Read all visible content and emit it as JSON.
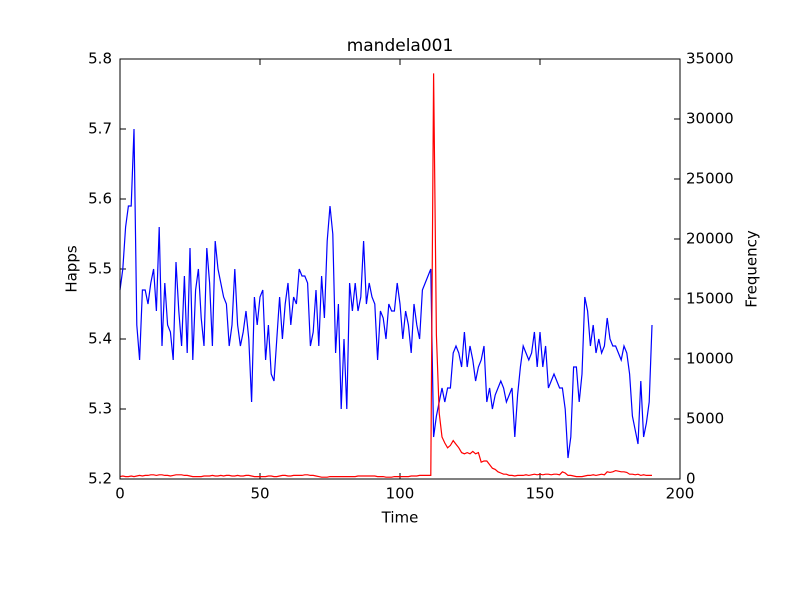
{
  "chart_data": {
    "type": "line",
    "title": "mandela001",
    "xlabel": "Time",
    "ylabel": "Happs",
    "y2label": "Frequency",
    "xlim": [
      0,
      200
    ],
    "xticks": [
      0,
      50,
      100,
      150,
      200
    ],
    "ylim": [
      5.2,
      5.8
    ],
    "yticks": [
      5.2,
      5.3,
      5.4,
      5.5,
      5.6,
      5.7,
      5.8
    ],
    "y2lim": [
      0,
      35000
    ],
    "y2ticks": [
      0,
      5000,
      10000,
      15000,
      20000,
      25000,
      30000,
      35000
    ],
    "x": [
      0,
      1,
      2,
      3,
      4,
      5,
      6,
      7,
      8,
      9,
      10,
      11,
      12,
      13,
      14,
      15,
      16,
      17,
      18,
      19,
      20,
      21,
      22,
      23,
      24,
      25,
      26,
      27,
      28,
      29,
      30,
      31,
      32,
      33,
      34,
      35,
      36,
      37,
      38,
      39,
      40,
      41,
      42,
      43,
      44,
      45,
      46,
      47,
      48,
      49,
      50,
      51,
      52,
      53,
      54,
      55,
      56,
      57,
      58,
      59,
      60,
      61,
      62,
      63,
      64,
      65,
      66,
      67,
      68,
      69,
      70,
      71,
      72,
      73,
      74,
      75,
      76,
      77,
      78,
      79,
      80,
      81,
      82,
      83,
      84,
      85,
      86,
      87,
      88,
      89,
      90,
      91,
      92,
      93,
      94,
      95,
      96,
      97,
      98,
      99,
      100,
      101,
      102,
      103,
      104,
      105,
      106,
      107,
      108,
      109,
      110,
      111,
      112,
      113,
      114,
      115,
      116,
      117,
      118,
      119,
      120,
      121,
      122,
      123,
      124,
      125,
      126,
      127,
      128,
      129,
      130,
      131,
      132,
      133,
      134,
      135,
      136,
      137,
      138,
      139,
      140,
      141,
      142,
      143,
      144,
      145,
      146,
      147,
      148,
      149,
      150,
      151,
      152,
      153,
      154,
      155,
      156,
      157,
      158,
      159,
      160,
      161,
      162,
      163,
      164,
      165,
      166,
      167,
      168,
      169,
      170,
      171,
      172,
      173,
      174,
      175,
      176,
      177,
      178,
      179,
      180,
      181,
      182,
      183,
      184,
      185,
      186,
      187,
      188,
      189,
      190
    ],
    "series": [
      {
        "color": "#0000ff",
        "values": [
          5.47,
          5.5,
          5.56,
          5.59,
          5.59,
          5.7,
          5.42,
          5.37,
          5.47,
          5.47,
          5.45,
          5.48,
          5.5,
          5.44,
          5.56,
          5.39,
          5.48,
          5.42,
          5.41,
          5.37,
          5.51,
          5.44,
          5.39,
          5.49,
          5.38,
          5.53,
          5.37,
          5.47,
          5.5,
          5.43,
          5.39,
          5.53,
          5.48,
          5.39,
          5.54,
          5.5,
          5.48,
          5.46,
          5.45,
          5.39,
          5.42,
          5.5,
          5.42,
          5.39,
          5.41,
          5.44,
          5.4,
          5.31,
          5.46,
          5.42,
          5.46,
          5.47,
          5.37,
          5.42,
          5.35,
          5.34,
          5.4,
          5.46,
          5.4,
          5.45,
          5.48,
          5.42,
          5.46,
          5.45,
          5.5,
          5.49,
          5.49,
          5.48,
          5.39,
          5.41,
          5.47,
          5.39,
          5.49,
          5.43,
          5.54,
          5.59,
          5.55,
          5.38,
          5.45,
          5.3,
          5.4,
          5.3,
          5.48,
          5.44,
          5.48,
          5.44,
          5.46,
          5.54,
          5.45,
          5.48,
          5.46,
          5.45,
          5.37,
          5.44,
          5.43,
          5.4,
          5.45,
          5.44,
          5.44,
          5.48,
          5.45,
          5.4,
          5.44,
          5.42,
          5.38,
          5.45,
          5.42,
          5.4,
          5.47,
          5.48,
          5.49,
          5.5,
          5.26,
          5.29,
          5.31,
          5.33,
          5.31,
          5.33,
          5.33,
          5.38,
          5.39,
          5.38,
          5.36,
          5.41,
          5.36,
          5.39,
          5.37,
          5.34,
          5.36,
          5.37,
          5.39,
          5.31,
          5.33,
          5.3,
          5.32,
          5.33,
          5.34,
          5.33,
          5.31,
          5.32,
          5.33,
          5.26,
          5.32,
          5.36,
          5.39,
          5.38,
          5.37,
          5.38,
          5.41,
          5.36,
          5.41,
          5.36,
          5.39,
          5.33,
          5.34,
          5.35,
          5.34,
          5.33,
          5.33,
          5.3,
          5.23,
          5.26,
          5.36,
          5.36,
          5.31,
          5.35,
          5.46,
          5.44,
          5.39,
          5.42,
          5.38,
          5.4,
          5.38,
          5.39,
          5.43,
          5.4,
          5.39,
          5.39,
          5.38,
          5.37,
          5.39,
          5.38,
          5.35,
          5.29,
          5.27,
          5.25,
          5.34,
          5.26,
          5.28,
          5.31,
          5.42
        ]
      },
      {
        "color": "#ff0000",
        "axis": "y2",
        "values": [
          200,
          250,
          200,
          200,
          250,
          200,
          250,
          300,
          250,
          300,
          300,
          350,
          350,
          300,
          350,
          350,
          300,
          300,
          250,
          300,
          350,
          350,
          350,
          300,
          300,
          250,
          200,
          200,
          200,
          200,
          250,
          250,
          250,
          300,
          250,
          250,
          300,
          250,
          300,
          300,
          250,
          250,
          300,
          250,
          250,
          300,
          300,
          250,
          200,
          200,
          200,
          200,
          200,
          250,
          250,
          200,
          200,
          250,
          300,
          300,
          250,
          250,
          300,
          300,
          300,
          300,
          350,
          350,
          300,
          300,
          250,
          200,
          150,
          150,
          150,
          200,
          200,
          200,
          200,
          200,
          200,
          200,
          200,
          200,
          200,
          250,
          250,
          250,
          250,
          250,
          250,
          250,
          200,
          200,
          200,
          150,
          150,
          150,
          200,
          200,
          200,
          200,
          200,
          200,
          250,
          250,
          250,
          300,
          300,
          300,
          300,
          300,
          33800,
          12000,
          5500,
          3500,
          3000,
          2600,
          2800,
          3200,
          2900,
          2600,
          2200,
          2100,
          2200,
          2100,
          2300,
          2100,
          2200,
          1400,
          1500,
          1500,
          1200,
          900,
          800,
          600,
          500,
          400,
          400,
          300,
          300,
          250,
          300,
          300,
          300,
          350,
          300,
          350,
          400,
          350,
          400,
          350,
          400,
          400,
          350,
          400,
          400,
          350,
          600,
          500,
          300,
          300,
          250,
          200,
          200,
          200,
          250,
          300,
          300,
          350,
          300,
          350,
          400,
          350,
          600,
          550,
          600,
          700,
          650,
          600,
          600,
          550,
          400,
          400,
          350,
          400,
          300,
          350,
          300,
          300,
          300
        ]
      }
    ]
  }
}
